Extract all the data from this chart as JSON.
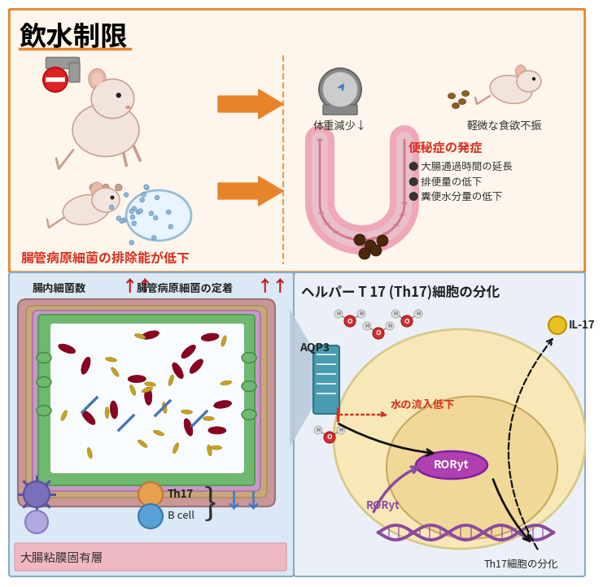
{
  "title_top": "飲水制限",
  "top_box_bg": "#FEF6EC",
  "top_border_color": "#E8832A",
  "label_weight_loss": "体重減少↓",
  "label_appetite": "軽微な食欲不振",
  "label_constipation": "便秘症の発症",
  "label_constipation_color": "#D93020",
  "bullet1": "● 大腸通過時間の延長",
  "bullet2": "● 排便量の低下",
  "bullet3": "● 糞便水分量の低下",
  "label_bacteria_low": "腸管病原細菌の排除能が低下",
  "label_bacteria_low_color": "#D93020",
  "label_intestinal_bacteria": "腸内細菌数",
  "label_pathogen_attach": "腸管病原細菌の定着",
  "label_mucosa": "大腸粘膜固有層",
  "label_Th17": "Th17",
  "label_Bcell": "B cell",
  "label_helper": "ヘルパー T 17 (Th17)細胞の分化",
  "label_AQP3": "AQP3",
  "label_water_reduction": "水の流入低下",
  "label_water_reduction_color": "#D93020",
  "label_RORyt1": "RORyt",
  "label_RORyt2": "RORyt",
  "label_IL17": "IL-17",
  "label_Th17_diff": "Th17細胞の分化",
  "orange_arrow_color": "#E8832A",
  "red_arrow_color": "#D93020",
  "blue_arrow_color": "#3A7EC8",
  "purple_color": "#8B4A9E",
  "teal_color": "#4A9BB0",
  "bottom_left_bg": "#DBE8F5",
  "bottom_right_bg": "#EBF0F8"
}
